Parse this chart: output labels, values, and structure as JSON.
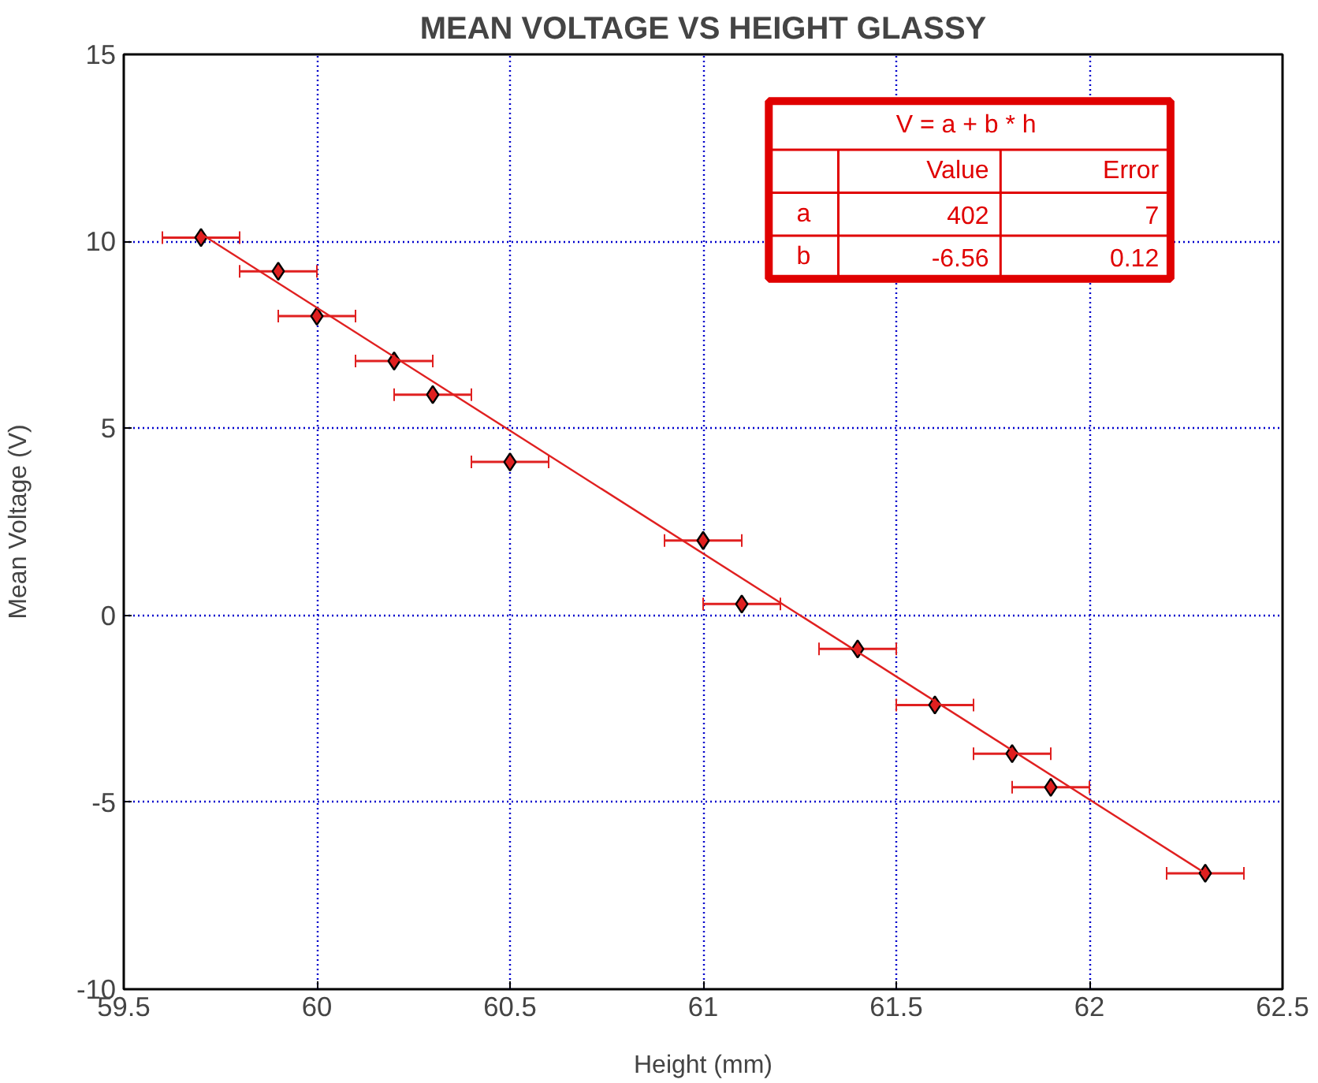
{
  "chart_data": {
    "type": "scatter",
    "title": "MEAN VOLTAGE VS HEIGHT GLASSY",
    "xlabel": "Height (mm)",
    "ylabel": "Mean Voltage (V)",
    "xlim": [
      59.5,
      62.5
    ],
    "ylim": [
      -10,
      15
    ],
    "xticks": [
      59.5,
      60,
      60.5,
      61,
      61.5,
      62,
      62.5
    ],
    "yticks": [
      -10,
      -5,
      0,
      5,
      10,
      15
    ],
    "grid": true,
    "marker": "diamond",
    "series": [
      {
        "color": "#e02020",
        "x": [
          59.7,
          59.9,
          60.0,
          60.2,
          60.3,
          60.5,
          61.0,
          61.1,
          61.4,
          61.6,
          61.8,
          61.9,
          62.3
        ],
        "values": [
          10.1,
          9.2,
          8.0,
          6.8,
          5.9,
          4.1,
          2.0,
          0.3,
          -0.9,
          -2.4,
          -3.7,
          -4.6,
          -6.9
        ],
        "xerrors": [
          0.1,
          0.1,
          0.1,
          0.1,
          0.1,
          0.1,
          0.1,
          0.1,
          0.1,
          0.1,
          0.1,
          0.1,
          0.1
        ]
      },
      {
        "type": "line",
        "marker": "none",
        "color": "#e02020",
        "x": [
          59.7,
          62.3
        ],
        "values": [
          10.2,
          -6.9
        ]
      }
    ],
    "annotations": [
      "V = a + b  * h",
      "Value",
      "Error",
      "a",
      "402",
      "7",
      "b",
      "-6.56",
      "0.12"
    ]
  }
}
